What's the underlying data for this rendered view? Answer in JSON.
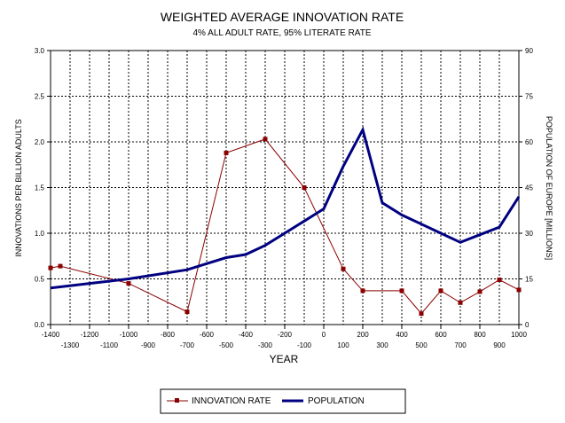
{
  "chart_data": {
    "type": "line",
    "title": "WEIGHTED AVERAGE INNOVATION RATE",
    "subtitle": "4% ALL ADULT RATE, 95% LITERATE RATE",
    "xlabel": "YEAR",
    "ylabel": "INNOVATIONS PER BILLION ADULTS",
    "y2label": "POPULATION OF EUROPE [MILLIONS]",
    "xlim": [
      -1400,
      1000
    ],
    "ylim": [
      0,
      3.0
    ],
    "y2lim": [
      0,
      90
    ],
    "x_ticks_upper": [
      "-1400",
      "-1200",
      "-1000",
      "-800",
      "-600",
      "-400",
      "-200",
      "0",
      "200",
      "400",
      "600",
      "800",
      "1000"
    ],
    "x_ticks_lower": [
      "-1300",
      "-1100",
      "-900",
      "-700",
      "-500",
      "-300",
      "-100",
      "100",
      "300",
      "500",
      "700",
      "900"
    ],
    "y_ticks": [
      "0.0",
      "0.5",
      "1.0",
      "1.5",
      "2.0",
      "2.5",
      "3.0"
    ],
    "y2_ticks": [
      "0",
      "15",
      "30",
      "45",
      "60",
      "75",
      "90"
    ],
    "grid": true,
    "legend_position": "bottom-center",
    "series": [
      {
        "name": "INNOVATION RATE",
        "axis": "left",
        "color": "#8b0000",
        "marker": "square",
        "x": [
          -1400,
          -1350,
          -1000,
          -700,
          -500,
          -300,
          -100,
          100,
          200,
          400,
          500,
          600,
          700,
          800,
          900,
          1000
        ],
        "y": [
          0.62,
          0.64,
          0.45,
          0.14,
          1.88,
          2.03,
          1.5,
          0.61,
          0.37,
          0.37,
          0.12,
          0.37,
          0.24,
          0.36,
          0.49,
          0.38
        ]
      },
      {
        "name": "POPULATION",
        "axis": "right",
        "color": "#000080",
        "marker": "none",
        "x": [
          -1400,
          -1000,
          -700,
          -600,
          -500,
          -400,
          -300,
          -200,
          -100,
          0,
          100,
          200,
          300,
          400,
          500,
          600,
          700,
          800,
          900,
          1000
        ],
        "y": [
          12,
          15,
          18,
          20,
          22,
          23,
          26,
          30,
          34,
          38,
          52,
          64,
          40,
          36,
          33,
          30,
          27,
          29.5,
          32,
          42
        ]
      }
    ]
  }
}
